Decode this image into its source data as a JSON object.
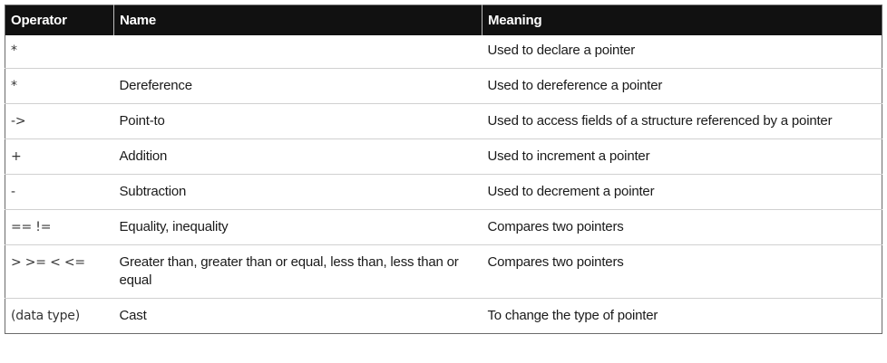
{
  "table": {
    "headers": {
      "operator": "Operator",
      "name": "Name",
      "meaning": "Meaning"
    },
    "rows": [
      {
        "operator": "*",
        "name": "",
        "meaning": "Used to declare a pointer"
      },
      {
        "operator": "*",
        "name": "Dereference",
        "meaning": "Used to dereference a pointer"
      },
      {
        "operator": "->",
        "name": "Point-to",
        "meaning": "Used to access fields of a structure referenced by a pointer"
      },
      {
        "operator": "+",
        "name": "Addition",
        "meaning": "Used to increment a pointer"
      },
      {
        "operator": "-",
        "name": "Subtraction",
        "meaning": "Used to decrement a pointer"
      },
      {
        "operator": "== !=",
        "name": "Equality, inequality",
        "meaning": "Compares two pointers"
      },
      {
        "operator": "> >= < <=",
        "name": "Greater than, greater than or equal, less than, less than or equal",
        "meaning": "Compares two pointers"
      },
      {
        "operator": "(data type)",
        "name": "Cast",
        "meaning": "To change the type of pointer"
      }
    ]
  }
}
